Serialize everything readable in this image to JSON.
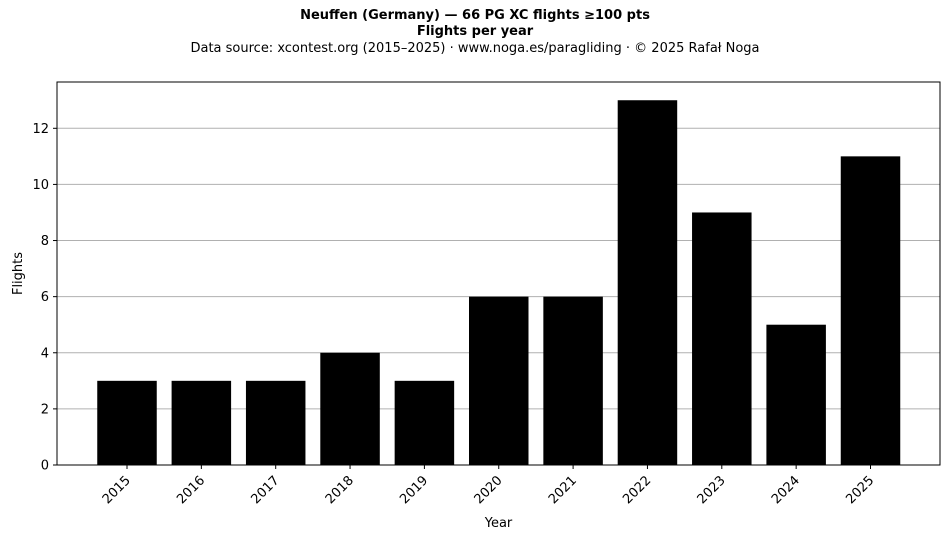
{
  "chart_data": {
    "type": "bar",
    "title": "Neuffen (Germany)  —  66 PG XC flights ≥100 pts",
    "subtitle": "Flights per year",
    "source_line": "Data source: xcontest.org (2015–2025)  ·  www.noga.es/paragliding  ·  © 2025 Rafał Noga",
    "xlabel": "Year",
    "ylabel": "Flights",
    "categories": [
      "2015",
      "2016",
      "2017",
      "2018",
      "2019",
      "2020",
      "2021",
      "2022",
      "2023",
      "2024",
      "2025"
    ],
    "values": [
      3,
      3,
      3,
      4,
      3,
      6,
      6,
      13,
      9,
      5,
      11
    ],
    "ylim": [
      0,
      13.65
    ],
    "yticks": [
      0,
      2,
      4,
      6,
      8,
      10,
      12
    ],
    "grid": "y",
    "bar_color": "#000000"
  }
}
